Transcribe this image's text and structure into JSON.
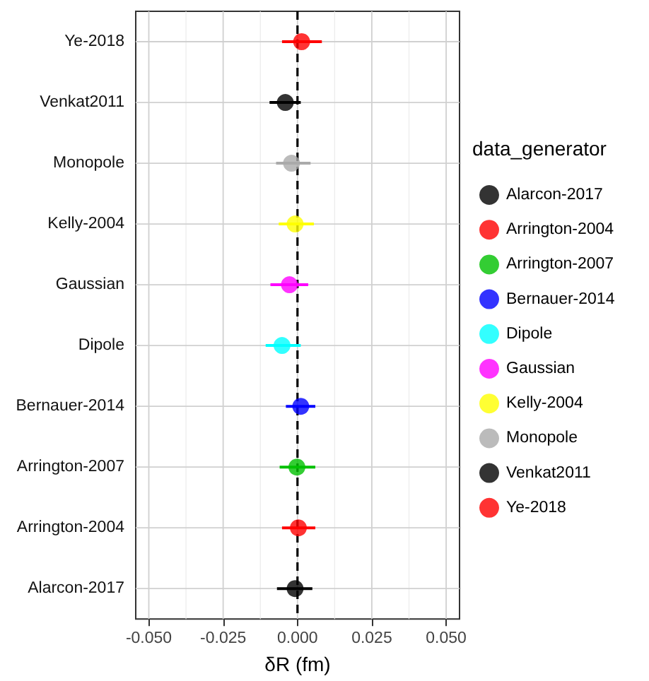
{
  "chart_data": {
    "type": "scatter",
    "orientation": "horizontal",
    "xlabel": "δR (fm)",
    "legend_title": "data_generator",
    "legend": "right",
    "grid": true,
    "marker": "circle",
    "categories": [
      "Ye-2018",
      "Venkat2011",
      "Monopole",
      "Kelly-2004",
      "Gaussian",
      "Dipole",
      "Bernauer-2014",
      "Arrington-2007",
      "Arrington-2004",
      "Alarcon-2017"
    ],
    "xlim": [
      -0.0544,
      0.0545
    ],
    "xticks": [
      {
        "value": -0.05,
        "label": "-0.050"
      },
      {
        "value": -0.025,
        "label": "-0.025"
      },
      {
        "value": 0,
        "label": "0.000"
      },
      {
        "value": 0.025,
        "label": "0.025"
      },
      {
        "value": 0.05,
        "label": "0.050"
      }
    ],
    "ref_lines": [
      {
        "axis": "x",
        "value": 0,
        "line_style": "dashed",
        "color": "#000000"
      }
    ],
    "series": [
      {
        "name": "Alarcon-2017",
        "color": "#000000",
        "values": [
          null,
          null,
          null,
          null,
          null,
          null,
          null,
          null,
          null,
          -0.0008
        ],
        "errors": [
          null,
          null,
          null,
          null,
          null,
          null,
          null,
          null,
          null,
          [
            -0.0069,
            0.005
          ]
        ]
      },
      {
        "name": "Arrington-2004",
        "color": "#ff0000",
        "values": [
          null,
          null,
          null,
          null,
          null,
          null,
          null,
          null,
          0.0003,
          null
        ],
        "errors": [
          null,
          null,
          null,
          null,
          null,
          null,
          null,
          null,
          [
            -0.0052,
            0.006
          ],
          null
        ]
      },
      {
        "name": "Arrington-2007",
        "color": "#00c000",
        "values": [
          null,
          null,
          null,
          null,
          null,
          null,
          null,
          -0.0002,
          null,
          null
        ],
        "errors": [
          null,
          null,
          null,
          null,
          null,
          null,
          null,
          [
            -0.006,
            0.006
          ],
          null,
          null
        ]
      },
      {
        "name": "Bernauer-2014",
        "color": "#0000ff",
        "values": [
          null,
          null,
          null,
          null,
          null,
          null,
          0.0011,
          null,
          null,
          null
        ],
        "errors": [
          null,
          null,
          null,
          null,
          null,
          null,
          [
            -0.0039,
            0.006
          ],
          null,
          null,
          null
        ]
      },
      {
        "name": "Dipole",
        "color": "#00ffff",
        "values": [
          null,
          null,
          null,
          null,
          null,
          -0.0052,
          null,
          null,
          null,
          null
        ],
        "errors": [
          null,
          null,
          null,
          null,
          null,
          [
            -0.0107,
            0.0011
          ],
          null,
          null,
          null,
          null
        ]
      },
      {
        "name": "Gaussian",
        "color": "#ff00ff",
        "values": [
          null,
          null,
          null,
          null,
          -0.0027,
          null,
          null,
          null,
          null,
          null
        ],
        "errors": [
          null,
          null,
          null,
          null,
          [
            -0.0091,
            0.0036
          ],
          null,
          null,
          null,
          null,
          null
        ]
      },
      {
        "name": "Kelly-2004",
        "color": "#ffff00",
        "values": [
          null,
          null,
          null,
          -0.0008,
          null,
          null,
          null,
          null,
          null,
          null
        ],
        "errors": [
          null,
          null,
          null,
          [
            -0.0063,
            0.0055
          ],
          null,
          null,
          null,
          null,
          null,
          null
        ]
      },
      {
        "name": "Monopole",
        "color": "#aaaaaa",
        "values": [
          null,
          null,
          -0.002,
          null,
          null,
          null,
          null,
          null,
          null,
          null
        ],
        "errors": [
          null,
          null,
          [
            -0.0072,
            0.0044
          ],
          null,
          null,
          null,
          null,
          null,
          null,
          null
        ]
      },
      {
        "name": "Venkat2011",
        "color": "#000000",
        "values": [
          null,
          -0.0041,
          null,
          null,
          null,
          null,
          null,
          null,
          null,
          null
        ],
        "errors": [
          null,
          [
            -0.0094,
            0.0011
          ],
          null,
          null,
          null,
          null,
          null,
          null,
          null,
          null
        ]
      },
      {
        "name": "Ye-2018",
        "color": "#ff0000",
        "values": [
          0.0014,
          null,
          null,
          null,
          null,
          null,
          null,
          null,
          null,
          null
        ],
        "errors": [
          [
            -0.0052,
            0.0082
          ],
          null,
          null,
          null,
          null,
          null,
          null,
          null,
          null,
          null
        ]
      }
    ]
  }
}
